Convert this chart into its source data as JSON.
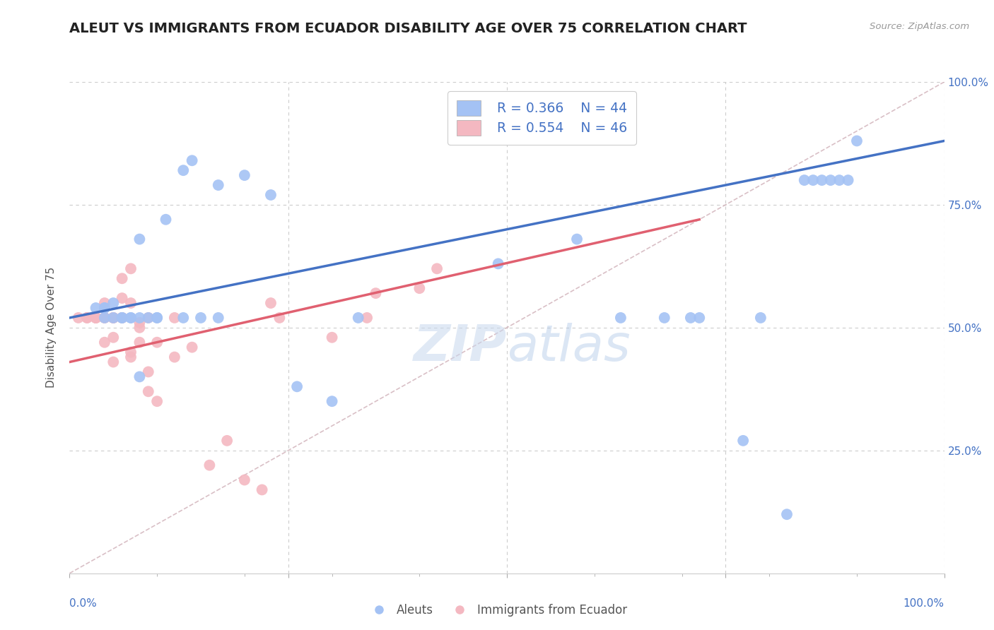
{
  "title": "ALEUT VS IMMIGRANTS FROM ECUADOR DISABILITY AGE OVER 75 CORRELATION CHART",
  "source": "Source: ZipAtlas.com",
  "ylabel": "Disability Age Over 75",
  "background_color": "#ffffff",
  "title_color": "#222222",
  "title_fontsize": 14,
  "legend_r1": "R = 0.366",
  "legend_n1": "N = 44",
  "legend_r2": "R = 0.554",
  "legend_n2": "N = 46",
  "aleut_color": "#a4c2f4",
  "ecuador_color": "#f4b8c1",
  "trend_aleut_color": "#4472c4",
  "trend_ecuador_color": "#e06070",
  "diagonal_color": "#d0b0b8",
  "grid_color": "#cccccc",
  "axis_label_color": "#4472c4",
  "tick_color": "#888888",
  "xlim": [
    0.0,
    1.0
  ],
  "ylim": [
    0.0,
    1.0
  ],
  "aleut_x": [
    0.13,
    0.14,
    0.17,
    0.2,
    0.23,
    0.03,
    0.04,
    0.04,
    0.04,
    0.05,
    0.05,
    0.06,
    0.06,
    0.07,
    0.07,
    0.08,
    0.08,
    0.08,
    0.09,
    0.1,
    0.1,
    0.11,
    0.13,
    0.15,
    0.17,
    0.26,
    0.3,
    0.33,
    0.49,
    0.58,
    0.63,
    0.68,
    0.71,
    0.72,
    0.77,
    0.79,
    0.82,
    0.84,
    0.85,
    0.86,
    0.87,
    0.88,
    0.89,
    0.9
  ],
  "aleut_y": [
    0.82,
    0.84,
    0.79,
    0.81,
    0.77,
    0.54,
    0.54,
    0.54,
    0.52,
    0.55,
    0.52,
    0.52,
    0.52,
    0.52,
    0.52,
    0.4,
    0.52,
    0.68,
    0.52,
    0.52,
    0.52,
    0.72,
    0.52,
    0.52,
    0.52,
    0.38,
    0.35,
    0.52,
    0.63,
    0.68,
    0.52,
    0.52,
    0.52,
    0.52,
    0.27,
    0.52,
    0.12,
    0.8,
    0.8,
    0.8,
    0.8,
    0.8,
    0.8,
    0.88
  ],
  "ecuador_x": [
    0.01,
    0.02,
    0.02,
    0.03,
    0.03,
    0.03,
    0.03,
    0.04,
    0.04,
    0.04,
    0.04,
    0.05,
    0.05,
    0.05,
    0.05,
    0.05,
    0.06,
    0.06,
    0.06,
    0.06,
    0.07,
    0.07,
    0.07,
    0.07,
    0.08,
    0.08,
    0.08,
    0.09,
    0.09,
    0.09,
    0.1,
    0.1,
    0.12,
    0.12,
    0.14,
    0.16,
    0.18,
    0.2,
    0.22,
    0.23,
    0.24,
    0.3,
    0.34,
    0.35,
    0.4,
    0.42
  ],
  "ecuador_y": [
    0.52,
    0.52,
    0.52,
    0.52,
    0.52,
    0.52,
    0.52,
    0.47,
    0.52,
    0.52,
    0.55,
    0.43,
    0.52,
    0.52,
    0.52,
    0.48,
    0.56,
    0.6,
    0.52,
    0.52,
    0.45,
    0.44,
    0.55,
    0.62,
    0.51,
    0.5,
    0.47,
    0.37,
    0.41,
    0.52,
    0.35,
    0.47,
    0.44,
    0.52,
    0.46,
    0.22,
    0.27,
    0.19,
    0.17,
    0.55,
    0.52,
    0.48,
    0.52,
    0.57,
    0.58,
    0.62
  ],
  "trend_aleut_x0": 0.0,
  "trend_aleut_y0": 0.52,
  "trend_aleut_x1": 1.0,
  "trend_aleut_y1": 0.88,
  "trend_ecuador_x0": 0.0,
  "trend_ecuador_y0": 0.43,
  "trend_ecuador_x1": 0.72,
  "trend_ecuador_y1": 0.72,
  "right_yticks": [
    0.25,
    0.5,
    0.75,
    1.0
  ],
  "right_ytick_labels": [
    "25.0%",
    "50.0%",
    "75.0%",
    "100.0%"
  ]
}
